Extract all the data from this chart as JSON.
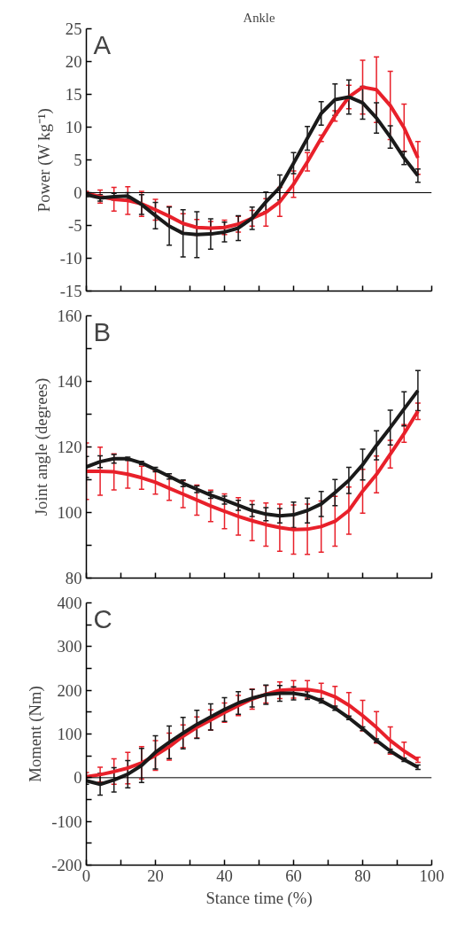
{
  "chart_data": [
    {
      "type": "line",
      "title": "Ankle",
      "ylabel": "Power (W kg⁻¹)",
      "annotations": [
        "A"
      ],
      "x": [
        0,
        4,
        8,
        12,
        16,
        20,
        24,
        28,
        32,
        36,
        40,
        44,
        48,
        52,
        56,
        60,
        64,
        68,
        72,
        76,
        80,
        84,
        88,
        92,
        96
      ],
      "xlim": [
        0,
        100
      ],
      "xticks": [
        {
          "value": 0,
          "label": null
        },
        {
          "value": 10,
          "label": null
        },
        {
          "value": 20,
          "label": null
        },
        {
          "value": 30,
          "label": null
        },
        {
          "value": 40,
          "label": null
        },
        {
          "value": 50,
          "label": null
        },
        {
          "value": 60,
          "label": null
        },
        {
          "value": 70,
          "label": null
        },
        {
          "value": 80,
          "label": null
        },
        {
          "value": 90,
          "label": null
        },
        {
          "value": 100,
          "label": null
        }
      ],
      "ylim": [
        -15,
        25
      ],
      "yticks": [
        -15,
        -10,
        -5,
        0,
        5,
        10,
        15,
        20,
        25
      ],
      "tick_labels": "y",
      "grid": false,
      "marker": "none",
      "line_style": "solid",
      "ref_lines": [
        {
          "axis": "y",
          "value": 0,
          "label": null,
          "color": "#000000"
        }
      ],
      "series": [
        {
          "color": "#e8202a",
          "values": [
            -0.1,
            -0.6,
            -1.0,
            -1.2,
            -1.7,
            -2.6,
            -3.6,
            -4.7,
            -5.3,
            -5.4,
            -5.3,
            -4.8,
            -3.9,
            -3.0,
            -1.4,
            1.3,
            4.7,
            8.3,
            11.7,
            14.6,
            16.1,
            15.7,
            13.3,
            9.9,
            5.3
          ],
          "errors": [
            0.3,
            1.0,
            1.8,
            2.1,
            1.9,
            1.6,
            1.5,
            1.5,
            1.2,
            1.0,
            1.1,
            1.2,
            1.2,
            2.1,
            2.2,
            2.0,
            1.4,
            0.5,
            0.8,
            1.8,
            4.1,
            5.0,
            5.2,
            3.6,
            2.5
          ]
        },
        {
          "color": "#1a1a1a",
          "values": [
            -0.3,
            -0.8,
            -0.6,
            -0.5,
            -1.8,
            -3.5,
            -5.1,
            -6.2,
            -6.4,
            -6.3,
            -6.0,
            -5.4,
            -3.9,
            -1.4,
            0.8,
            4.5,
            8.3,
            12.1,
            14.2,
            14.6,
            13.7,
            11.4,
            8.5,
            5.3,
            2.6
          ],
          "errors": [
            0.3,
            0.5,
            0.5,
            0.5,
            1.5,
            2.0,
            2.9,
            3.6,
            3.5,
            2.3,
            1.5,
            1.9,
            1.7,
            1.5,
            1.9,
            1.6,
            1.8,
            1.8,
            2.4,
            2.6,
            2.5,
            2.3,
            1.7,
            1.0,
            1.0
          ]
        }
      ]
    },
    {
      "type": "line",
      "ylabel": "Joint angle (degrees)",
      "annotations": [
        "B"
      ],
      "x": [
        0,
        4,
        8,
        12,
        16,
        20,
        24,
        28,
        32,
        36,
        40,
        44,
        48,
        52,
        56,
        60,
        64,
        68,
        72,
        76,
        80,
        84,
        88,
        92,
        96
      ],
      "xlim": [
        0,
        100
      ],
      "xticks": [
        {
          "value": 0,
          "label": null
        },
        {
          "value": 10,
          "label": null
        },
        {
          "value": 20,
          "label": null
        },
        {
          "value": 30,
          "label": null
        },
        {
          "value": 40,
          "label": null
        },
        {
          "value": 50,
          "label": null
        },
        {
          "value": 60,
          "label": null
        },
        {
          "value": 70,
          "label": null
        },
        {
          "value": 80,
          "label": null
        },
        {
          "value": 90,
          "label": null
        },
        {
          "value": 100,
          "label": null
        }
      ],
      "ylim": [
        80,
        160
      ],
      "yticks": [
        80,
        {
          "value": 90,
          "label": null
        },
        100,
        {
          "value": 110,
          "label": null
        },
        120,
        {
          "value": 130,
          "label": null
        },
        140,
        {
          "value": 150,
          "label": null
        },
        160
      ],
      "tick_labels": "y",
      "grid": false,
      "marker": "none",
      "line_style": "solid",
      "series": [
        {
          "color": "#e8202a",
          "values": [
            112.6,
            112.6,
            112.4,
            111.7,
            110.6,
            109.2,
            107.4,
            105.6,
            103.8,
            102.0,
            100.4,
            98.8,
            97.5,
            96.3,
            95.4,
            94.8,
            94.9,
            95.7,
            97.3,
            100.6,
            106.5,
            111.6,
            117.8,
            124.1,
            130.9
          ],
          "errors": [
            8.6,
            7.3,
            5.5,
            4.3,
            3.5,
            3.6,
            3.7,
            4.1,
            4.6,
            4.8,
            5.3,
            5.7,
            6.1,
            6.6,
            7.2,
            7.5,
            7.7,
            7.8,
            7.6,
            7.2,
            6.7,
            5.6,
            4.2,
            2.7,
            2.5
          ]
        },
        {
          "color": "#1a1a1a",
          "values": [
            113.9,
            115.5,
            116.4,
            116.4,
            115.1,
            113.1,
            111.0,
            108.9,
            107.1,
            105.3,
            103.8,
            102.2,
            100.6,
            99.5,
            99.0,
            99.3,
            100.6,
            102.6,
            106.1,
            109.8,
            114.6,
            120.5,
            125.9,
            131.6,
            137.2
          ],
          "errors": [
            3.2,
            1.8,
            1.3,
            0.5,
            0.5,
            0.7,
            0.8,
            1.0,
            1.0,
            1.0,
            1.2,
            1.5,
            1.8,
            2.0,
            2.2,
            3.9,
            3.8,
            3.8,
            4.0,
            4.0,
            4.7,
            4.4,
            5.3,
            5.2,
            6.1
          ]
        }
      ]
    },
    {
      "type": "line",
      "xlabel": "Stance time (%)",
      "ylabel": "Moment (Nm)",
      "annotations": [
        "C"
      ],
      "x": [
        0,
        4,
        8,
        12,
        16,
        20,
        24,
        28,
        32,
        36,
        40,
        44,
        48,
        52,
        56,
        60,
        64,
        68,
        72,
        76,
        80,
        84,
        88,
        92,
        96
      ],
      "xlim": [
        0,
        100
      ],
      "xticks": [
        0,
        {
          "value": 10,
          "label": null
        },
        20,
        {
          "value": 30,
          "label": null
        },
        40,
        {
          "value": 50,
          "label": null
        },
        60,
        {
          "value": 70,
          "label": null
        },
        80,
        {
          "value": 90,
          "label": null
        },
        100
      ],
      "ylim": [
        -200,
        400
      ],
      "yticks": [
        -200,
        {
          "value": -150,
          "label": null
        },
        -100,
        {
          "value": -50,
          "label": null
        },
        0,
        {
          "value": 50,
          "label": null
        },
        100,
        {
          "value": 150,
          "label": null
        },
        200,
        {
          "value": 250,
          "label": null
        },
        300,
        {
          "value": 350,
          "label": null
        },
        400
      ],
      "grid": false,
      "marker": "none",
      "line_style": "solid",
      "ref_lines": [
        {
          "axis": "y",
          "value": 0,
          "label": null,
          "color": "#000000"
        }
      ],
      "series": [
        {
          "color": "#e8202a",
          "values": [
            2,
            7,
            14,
            22,
            34,
            51,
            71,
            95,
            115,
            132,
            149,
            165,
            180,
            191,
            200,
            202,
            202,
            197,
            185,
            166,
            142,
            115,
            85,
            61,
            41
          ],
          "errors": [
            10,
            17,
            29,
            36,
            37,
            34,
            31,
            26,
            24,
            23,
            22,
            23,
            23,
            20,
            19,
            20,
            20,
            19,
            24,
            29,
            35,
            36,
            31,
            20,
            6
          ]
        },
        {
          "color": "#1a1a1a",
          "values": [
            -7,
            -15,
            -5,
            8,
            28,
            58,
            81,
            102,
            122,
            139,
            156,
            171,
            182,
            190,
            193,
            193,
            188,
            176,
            159,
            137,
            112,
            85,
            61,
            41,
            24
          ],
          "errors": [
            8,
            25,
            28,
            31,
            39,
            38,
            37,
            36,
            32,
            30,
            27,
            26,
            20,
            22,
            18,
            15,
            9,
            5,
            5,
            4,
            4,
            4,
            4,
            4,
            5
          ]
        }
      ]
    }
  ]
}
